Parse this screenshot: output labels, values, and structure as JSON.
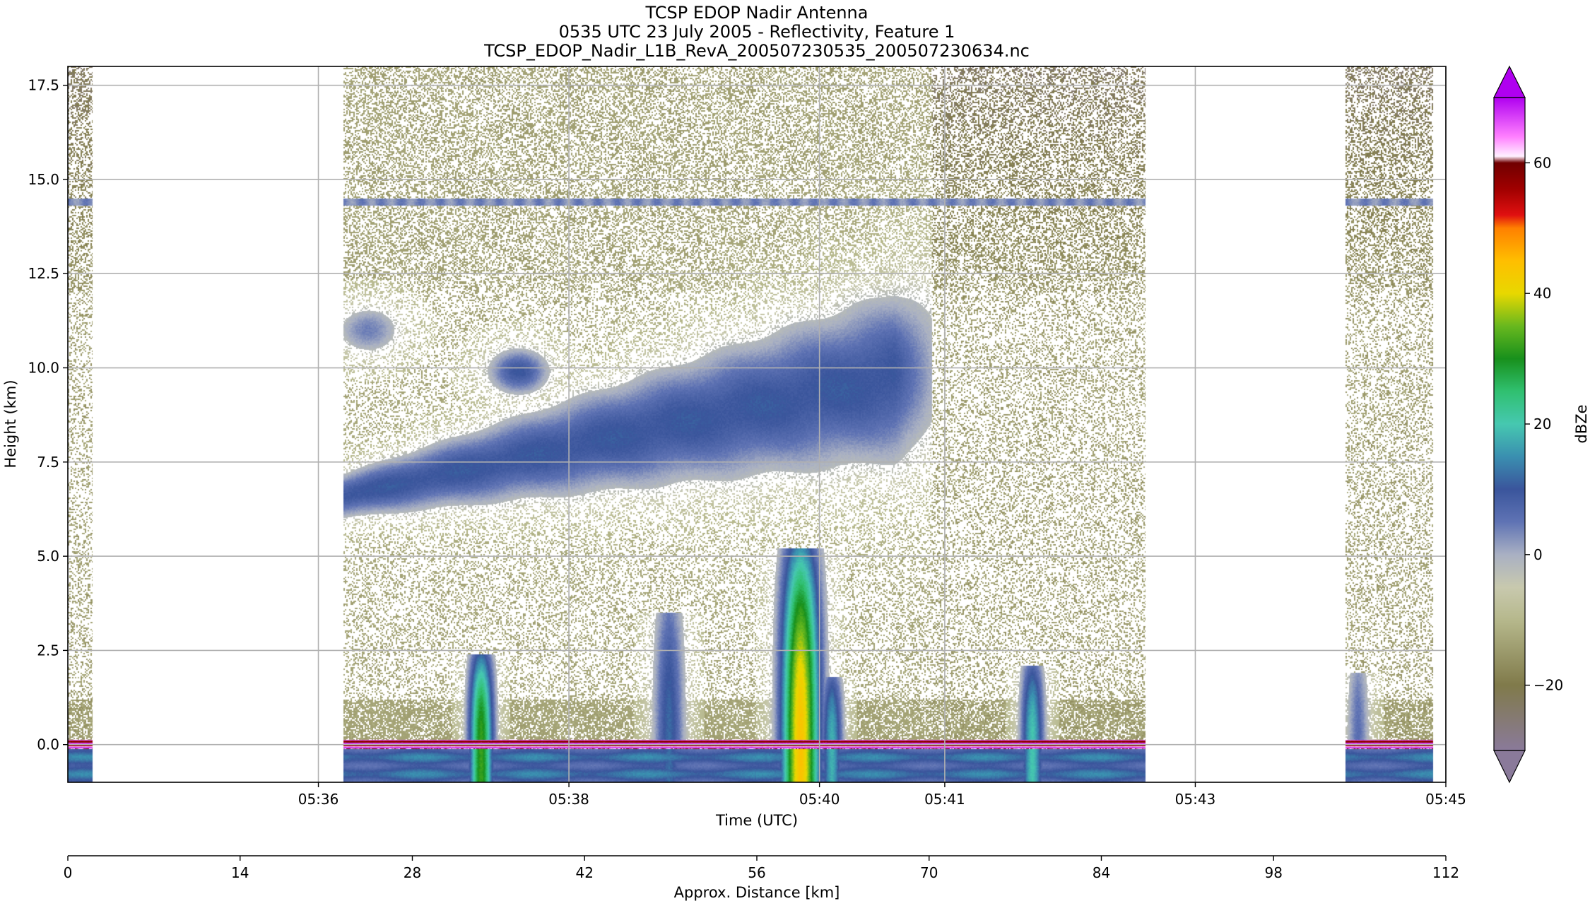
{
  "chart_data": {
    "type": "heatmap",
    "title": [
      "TCSP EDOP Nadir Antenna",
      "0535 UTC 23 July 2005 - Reflectivity, Feature 1",
      "TCSP_EDOP_Nadir_L1B_RevA_200507230535_200507230634.nc"
    ],
    "xlabel": "Time (UTC)",
    "ylabel": "Height (km)",
    "x2label": "Approx. Distance [km]",
    "colorbar_label": "dBZe",
    "xlim_minutes": [
      334.0,
      345.0
    ],
    "ylim": [
      -1.0,
      18.0
    ],
    "x2lim": [
      0,
      112
    ],
    "x_ticks": [
      {
        "value": 336,
        "label": "05:36"
      },
      {
        "value": 338,
        "label": "05:38"
      },
      {
        "value": 340,
        "label": "05:40"
      },
      {
        "value": 341,
        "label": "05:41"
      },
      {
        "value": 343,
        "label": "05:43"
      },
      {
        "value": 345,
        "label": "05:45"
      }
    ],
    "y_ticks": [
      {
        "value": 0.0,
        "label": "0.0"
      },
      {
        "value": 2.5,
        "label": "2.5"
      },
      {
        "value": 5.0,
        "label": "5.0"
      },
      {
        "value": 7.5,
        "label": "7.5"
      },
      {
        "value": 10.0,
        "label": "10.0"
      },
      {
        "value": 12.5,
        "label": "12.5"
      },
      {
        "value": 15.0,
        "label": "15.0"
      },
      {
        "value": 17.5,
        "label": "17.5"
      }
    ],
    "x2_ticks": [
      {
        "value": 0,
        "label": "0"
      },
      {
        "value": 14,
        "label": "14"
      },
      {
        "value": 28,
        "label": "28"
      },
      {
        "value": 42,
        "label": "42"
      },
      {
        "value": 56,
        "label": "56"
      },
      {
        "value": 70,
        "label": "70"
      },
      {
        "value": 84,
        "label": "84"
      },
      {
        "value": 98,
        "label": "98"
      },
      {
        "value": 112,
        "label": "112"
      }
    ],
    "colorbar": {
      "range": [
        -30,
        70
      ],
      "extend": "both",
      "ticks": [
        {
          "value": -20,
          "label": "−20"
        },
        {
          "value": 0,
          "label": "0"
        },
        {
          "value": 20,
          "label": "20"
        },
        {
          "value": 40,
          "label": "40"
        },
        {
          "value": 60,
          "label": "60"
        }
      ],
      "stops": [
        {
          "v": -30,
          "c": "#8a7a9a"
        },
        {
          "v": -20,
          "c": "#807a4a"
        },
        {
          "v": -10,
          "c": "#b6b88c"
        },
        {
          "v": -5,
          "c": "#c8c9ae"
        },
        {
          "v": 0,
          "c": "#a9b0c3"
        },
        {
          "v": 5,
          "c": "#5f73b4"
        },
        {
          "v": 10,
          "c": "#3a559c"
        },
        {
          "v": 15,
          "c": "#3a8fb0"
        },
        {
          "v": 20,
          "c": "#46c8b0"
        },
        {
          "v": 25,
          "c": "#30c070"
        },
        {
          "v": 30,
          "c": "#18901c"
        },
        {
          "v": 35,
          "c": "#68b81e"
        },
        {
          "v": 40,
          "c": "#e8d800"
        },
        {
          "v": 45,
          "c": "#ffbe00"
        },
        {
          "v": 50,
          "c": "#ff8000"
        },
        {
          "v": 52,
          "c": "#e01010"
        },
        {
          "v": 56,
          "c": "#a00000"
        },
        {
          "v": 60,
          "c": "#700000"
        },
        {
          "v": 61,
          "c": "#fff0ff"
        },
        {
          "v": 64,
          "c": "#ff80ff"
        },
        {
          "v": 70,
          "c": "#b000f0"
        }
      ]
    },
    "data_segments_minutes": [
      [
        334.0,
        334.2
      ],
      [
        336.2,
        342.6
      ],
      [
        344.2,
        344.9
      ]
    ],
    "ocean_surface_km": 0.0,
    "contamination_line_km": 14.4,
    "features": [
      {
        "kind": "convective_cell",
        "center_min": 337.3,
        "top_km": 2.4,
        "max_dbze": 32
      },
      {
        "kind": "convective_cell",
        "center_min": 338.8,
        "top_km": 3.5,
        "max_dbze": 12
      },
      {
        "kind": "convective_cell",
        "center_min": 339.85,
        "top_km": 5.2,
        "max_dbze": 44
      },
      {
        "kind": "convective_cell",
        "center_min": 340.1,
        "top_km": 1.8,
        "max_dbze": 18
      },
      {
        "kind": "convective_cell",
        "center_min": 341.7,
        "top_km": 2.1,
        "max_dbze": 20
      },
      {
        "kind": "convective_cell",
        "center_min": 344.3,
        "top_km": 1.9,
        "max_dbze": 6
      },
      {
        "kind": "anvil",
        "start_min": 336.2,
        "end_min": 340.6,
        "base_km": 6.0,
        "top_km": 9.5,
        "max_dbze": 10
      },
      {
        "kind": "cloud_fragment",
        "center_min": 337.6,
        "center_km": 9.9,
        "max_dbze": 10
      },
      {
        "kind": "cloud_fragment",
        "center_min": 336.4,
        "center_km": 11.0,
        "max_dbze": 4
      }
    ]
  }
}
